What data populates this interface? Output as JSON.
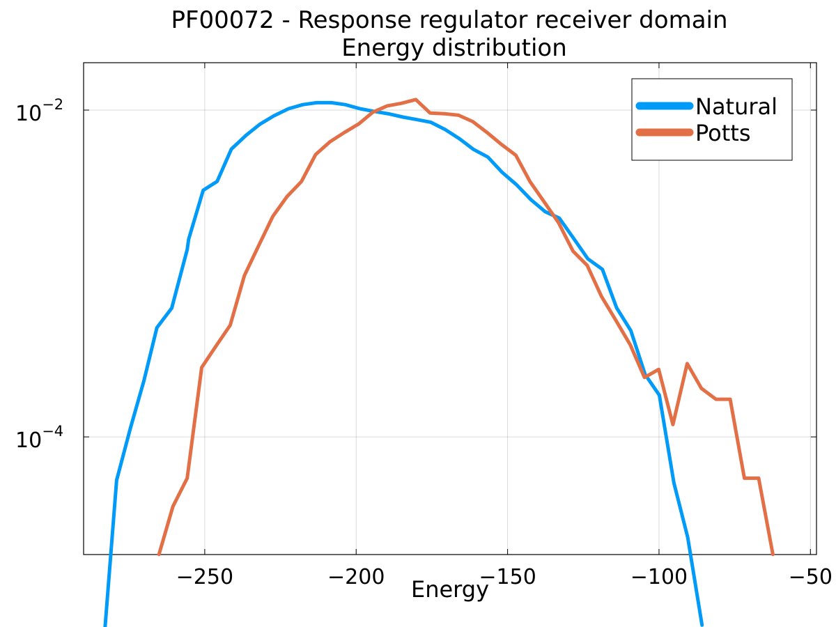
{
  "chart_data": {
    "type": "line",
    "title": "PF00072 - Response regulator receiver domain",
    "subtitle": "Energy distribution",
    "xlabel": "Energy",
    "ylabel": "",
    "xlim": [
      -290,
      -48
    ],
    "ylim_log10": [
      -4.72,
      -1.71
    ],
    "y_scale": "log",
    "x_ticks": [
      -250,
      -200,
      -150,
      -100,
      -50
    ],
    "x_tick_labels": [
      "−250",
      "−200",
      "−150",
      "−100",
      "−50"
    ],
    "y_ticks": [
      0.0001,
      0.01
    ],
    "y_tick_labels": [
      {
        "base": "10",
        "exp": "−4"
      },
      {
        "base": "10",
        "exp": "−2"
      }
    ],
    "grid": true,
    "legend_position": "top-right",
    "series": [
      {
        "name": "Natural",
        "color": "#009af9",
        "points": [
          [
            -283.6,
            4.7e-06
          ],
          [
            -279.1,
            5.43e-05
          ],
          [
            -274.5,
            0.000114
          ],
          [
            -270.1,
            0.00022
          ],
          [
            -265.8,
            0.000466
          ],
          [
            -260.9,
            0.000614
          ],
          [
            -255.8,
            0.0014
          ],
          [
            -255.3,
            0.00162
          ],
          [
            -250.5,
            0.00323
          ],
          [
            -245.9,
            0.00366
          ],
          [
            -241.2,
            0.00577
          ],
          [
            -236.3,
            0.00702
          ],
          [
            -231.7,
            0.00821
          ],
          [
            -227.1,
            0.00924
          ],
          [
            -222.3,
            0.0102
          ],
          [
            -217.6,
            0.0108
          ],
          [
            -213.0,
            0.0111
          ],
          [
            -208.2,
            0.0111
          ],
          [
            -203.6,
            0.0108
          ],
          [
            -198.8,
            0.0102
          ],
          [
            -194.2,
            0.00983
          ],
          [
            -189.6,
            0.00951
          ],
          [
            -184.6,
            0.00907
          ],
          [
            -180.1,
            0.00875
          ],
          [
            -175.4,
            0.00843
          ],
          [
            -170.7,
            0.00762
          ],
          [
            -165.9,
            0.00668
          ],
          [
            -161.2,
            0.00574
          ],
          [
            -156.5,
            0.00516
          ],
          [
            -151.8,
            0.00416
          ],
          [
            -147.0,
            0.00349
          ],
          [
            -142.3,
            0.00283
          ],
          [
            -137.6,
            0.00239
          ],
          [
            -132.9,
            0.00218
          ],
          [
            -128.2,
            0.00164
          ],
          [
            -123.5,
            0.00123
          ],
          [
            -118.7,
            0.00106
          ],
          [
            -114.0,
            0.000616
          ],
          [
            -109.3,
            0.000447
          ],
          [
            -104.6,
            0.000241
          ],
          [
            -99.9,
            0.00018
          ],
          [
            -95.1,
            5.24e-05
          ],
          [
            -90.5,
            2.42e-05
          ],
          [
            -85.8,
            7.05e-06
          ]
        ]
      },
      {
        "name": "Potts",
        "color": "#e26f46",
        "points": [
          [
            -265.1,
            1.91e-05
          ],
          [
            -260.5,
            3.75e-05
          ],
          [
            -255.8,
            5.59e-05
          ],
          [
            -251.0,
            0.000266
          ],
          [
            -246.4,
            0.000357
          ],
          [
            -241.6,
            0.000482
          ],
          [
            -236.9,
            0.000971
          ],
          [
            -232.2,
            0.00148
          ],
          [
            -227.5,
            0.00224
          ],
          [
            -222.8,
            0.00296
          ],
          [
            -218.1,
            0.00365
          ],
          [
            -213.4,
            0.00534
          ],
          [
            -208.6,
            0.00641
          ],
          [
            -203.9,
            0.00729
          ],
          [
            -199.1,
            0.00824
          ],
          [
            -194.5,
            0.0097
          ],
          [
            -189.8,
            0.0106
          ],
          [
            -185.1,
            0.011
          ],
          [
            -180.3,
            0.0116
          ],
          [
            -175.6,
            0.0096
          ],
          [
            -170.9,
            0.0095
          ],
          [
            -166.2,
            0.0093
          ],
          [
            -161.5,
            0.00851
          ],
          [
            -156.8,
            0.0073
          ],
          [
            -152.0,
            0.00616
          ],
          [
            -147.3,
            0.0053
          ],
          [
            -142.6,
            0.00365
          ],
          [
            -137.9,
            0.00274
          ],
          [
            -133.2,
            0.00205
          ],
          [
            -128.4,
            0.00137
          ],
          [
            -123.7,
            0.00112
          ],
          [
            -119.0,
            0.000723
          ],
          [
            -114.3,
            0.000519
          ],
          [
            -109.5,
            0.000366
          ],
          [
            -104.8,
            0.000231
          ],
          [
            -100.1,
            0.000259
          ],
          [
            -95.4,
            0.000119
          ],
          [
            -90.7,
            0.000281
          ],
          [
            -86.0,
            0.000198
          ],
          [
            -81.2,
            0.00017
          ],
          [
            -76.5,
            0.00017
          ],
          [
            -71.8,
            5.59e-05
          ],
          [
            -67.1,
            5.59e-05
          ],
          [
            -62.4,
            1.91e-05
          ]
        ]
      }
    ]
  }
}
